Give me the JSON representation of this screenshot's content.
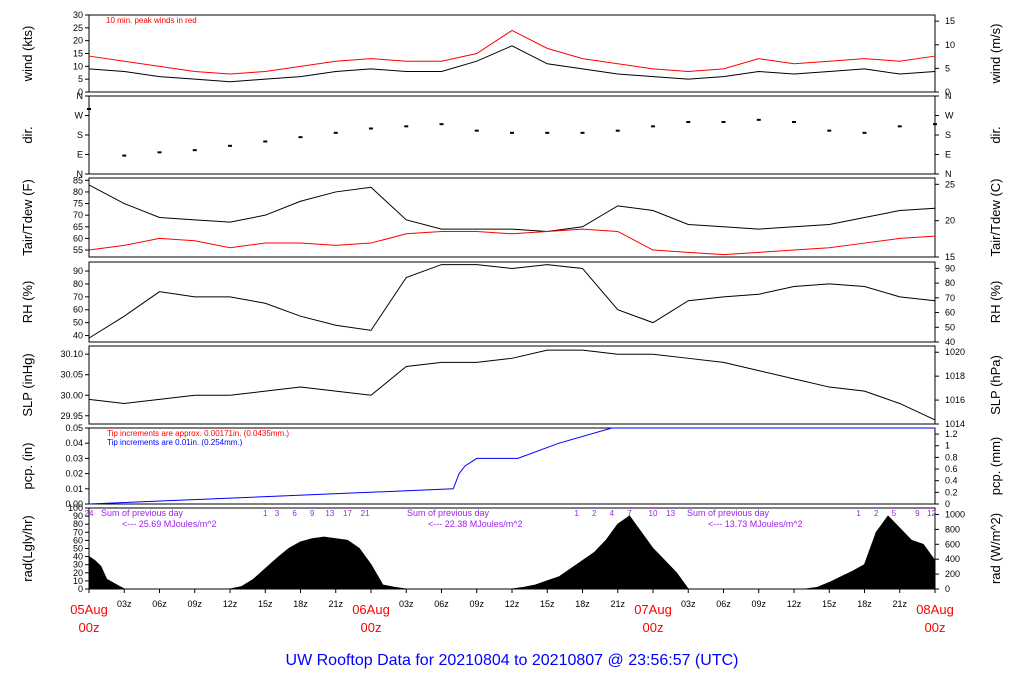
{
  "title": "UW Rooftop Data for 20210804  to  20210807 @ 23:56:57  (UTC)",
  "colors": {
    "text": "#000000",
    "red": "#ff0000",
    "blue": "#0000ff",
    "purple": "#a020f0",
    "title": "#0000ff"
  },
  "time_axis": {
    "hour_labels": [
      "03z",
      "06z",
      "09z",
      "12z",
      "15z",
      "18z",
      "21z"
    ],
    "days": [
      {
        "label": "05Aug",
        "sub": "00z"
      },
      {
        "label": "06Aug",
        "sub": "00z"
      },
      {
        "label": "07Aug",
        "sub": "00z"
      },
      {
        "label": "08Aug",
        "sub": "00z"
      }
    ]
  },
  "chart_data": [
    {
      "type": "line",
      "ylabel_left": "wind (kts)",
      "ylabel_right": "wind (m/s)",
      "annotation": "10 min. peak winds in red",
      "ylim": [
        0,
        30
      ],
      "left_ticks": [
        "0",
        "5",
        "10",
        "15",
        "20",
        "25",
        "30"
      ],
      "right_ticks": [
        "0",
        "5",
        "10",
        "15"
      ],
      "series": [
        {
          "color": "#000000",
          "x": [
            0,
            3,
            6,
            9,
            12,
            15,
            18,
            21,
            24,
            27,
            30,
            33,
            36,
            39,
            42,
            45,
            48,
            51,
            54,
            57,
            60,
            63,
            66,
            69,
            72
          ],
          "values": [
            9,
            8,
            6,
            5,
            4,
            5,
            6,
            8,
            9,
            8,
            8,
            12,
            18,
            11,
            9,
            7,
            6,
            5,
            6,
            8,
            7,
            8,
            9,
            7,
            8
          ]
        },
        {
          "color": "#ff0000",
          "x": [
            0,
            3,
            6,
            9,
            12,
            15,
            18,
            21,
            24,
            27,
            30,
            33,
            36,
            39,
            42,
            45,
            48,
            51,
            54,
            57,
            60,
            63,
            66,
            69,
            72
          ],
          "values": [
            14,
            12,
            10,
            8,
            7,
            8,
            10,
            12,
            13,
            12,
            12,
            15,
            24,
            17,
            13,
            11,
            9,
            8,
            9,
            13,
            11,
            12,
            13,
            12,
            14
          ]
        }
      ]
    },
    {
      "type": "scatter",
      "ylabel_left": "dir.",
      "ylabel_right": "dir.",
      "left_ticks": [
        "N",
        "E",
        "S",
        "W",
        "N"
      ],
      "right_ticks": [
        "N",
        "E",
        "S",
        "W",
        "N"
      ],
      "x": [
        0,
        3,
        6,
        9,
        12,
        15,
        18,
        21,
        24,
        27,
        30,
        33,
        36,
        39,
        42,
        45,
        48,
        51,
        54,
        57,
        60,
        63,
        66,
        69,
        72
      ],
      "values": [
        300,
        85,
        100,
        110,
        130,
        150,
        170,
        190,
        210,
        220,
        230,
        200,
        190,
        190,
        190,
        200,
        220,
        240,
        240,
        250,
        240,
        200,
        190,
        220,
        230
      ]
    },
    {
      "type": "line",
      "ylabel_left": "Tair/Tdew (F)",
      "ylabel_right": "Tair/Tdew (C)",
      "ylim": [
        52,
        86
      ],
      "left_ticks": [
        "55",
        "60",
        "65",
        "70",
        "75",
        "80",
        "85"
      ],
      "right_ticks": [
        "15",
        "20",
        "25"
      ],
      "series": [
        {
          "color": "#000000",
          "x": [
            0,
            3,
            6,
            9,
            12,
            15,
            18,
            21,
            24,
            27,
            30,
            33,
            36,
            39,
            42,
            45,
            48,
            51,
            54,
            57,
            60,
            63,
            66,
            69,
            72
          ],
          "values": [
            83,
            75,
            69,
            68,
            67,
            70,
            76,
            80,
            82,
            68,
            64,
            64,
            64,
            63,
            65,
            74,
            72,
            66,
            65,
            64,
            65,
            66,
            69,
            72,
            73
          ]
        },
        {
          "color": "#ff0000",
          "x": [
            0,
            3,
            6,
            9,
            12,
            15,
            18,
            21,
            24,
            27,
            30,
            33,
            36,
            39,
            42,
            45,
            48,
            51,
            54,
            57,
            60,
            63,
            66,
            69,
            72
          ],
          "values": [
            55,
            57,
            60,
            59,
            56,
            58,
            58,
            57,
            58,
            62,
            63,
            63,
            62,
            63,
            64,
            63,
            55,
            54,
            53,
            54,
            55,
            56,
            58,
            60,
            61
          ]
        }
      ]
    },
    {
      "type": "line",
      "ylabel_left": "RH (%)",
      "ylabel_right": "RH (%)",
      "ylim": [
        35,
        97
      ],
      "left_ticks": [
        "40",
        "50",
        "60",
        "70",
        "80",
        "90"
      ],
      "right_ticks": [
        "40",
        "50",
        "60",
        "70",
        "80",
        "90"
      ],
      "series": [
        {
          "color": "#000000",
          "x": [
            0,
            3,
            6,
            9,
            12,
            15,
            18,
            21,
            24,
            27,
            30,
            33,
            36,
            39,
            42,
            45,
            48,
            51,
            54,
            57,
            60,
            63,
            66,
            69,
            72
          ],
          "values": [
            38,
            55,
            74,
            70,
            70,
            65,
            55,
            48,
            44,
            85,
            95,
            95,
            92,
            95,
            92,
            60,
            50,
            67,
            70,
            72,
            78,
            80,
            78,
            70,
            67
          ]
        }
      ]
    },
    {
      "type": "line",
      "ylabel_left": "SLP (inHg)",
      "ylabel_right": "SLP (hPa)",
      "ylim": [
        29.93,
        30.12
      ],
      "left_ticks": [
        "29.95",
        "30.00",
        "30.05",
        "30.10"
      ],
      "right_ticks": [
        "1014",
        "1016",
        "1018",
        "1020"
      ],
      "series": [
        {
          "color": "#000000",
          "x": [
            0,
            3,
            6,
            9,
            12,
            15,
            18,
            21,
            24,
            27,
            30,
            33,
            36,
            39,
            42,
            45,
            48,
            51,
            54,
            57,
            60,
            63,
            66,
            69,
            72
          ],
          "values": [
            29.99,
            29.98,
            29.99,
            30.0,
            30.0,
            30.01,
            30.02,
            30.01,
            30.0,
            30.07,
            30.08,
            30.08,
            30.09,
            30.11,
            30.11,
            30.1,
            30.1,
            30.09,
            30.08,
            30.06,
            30.04,
            30.02,
            30.01,
            29.98,
            29.94
          ]
        }
      ]
    },
    {
      "type": "line",
      "ylabel_left": "pcp. (in)",
      "ylabel_right": "pcp. (mm)",
      "ylim": [
        0,
        0.05
      ],
      "left_ticks": [
        "0.00",
        "0.01",
        "0.02",
        "0.03",
        "0.04",
        "0.05"
      ],
      "right_ticks": [
        "0",
        "0.2",
        "0.4",
        "0.6",
        "0.8",
        "1",
        "1.2"
      ],
      "annotations": [
        {
          "text": "Tip increments are approx. 0.00171in. (0.0435mm.)",
          "color": "#ff0000"
        },
        {
          "text": "Tip increments are 0.01in. (0.254mm.)",
          "color": "#0000ff"
        }
      ],
      "series": [
        {
          "color": "#0000ff",
          "x": [
            0,
            31,
            31.5,
            32,
            33,
            36.5,
            40,
            44.5,
            72
          ],
          "values": [
            0,
            0.01,
            0.02,
            0.025,
            0.03,
            0.03,
            0.04,
            0.05,
            0.05
          ]
        }
      ]
    },
    {
      "type": "area",
      "ylabel_left": "rad(Lgly/hr)",
      "ylabel_right": "rad (W/m^2)",
      "ylim": [
        0,
        100
      ],
      "left_ticks": [
        "0",
        "10",
        "20",
        "30",
        "40",
        "50",
        "60",
        "70",
        "80",
        "90",
        "100"
      ],
      "right_ticks": [
        "0",
        "200",
        "400",
        "600",
        "800",
        "1000"
      ],
      "day_sums": [
        {
          "text": "Sum of previous day",
          "value_text": "<--- 25.69 MJoules/m^2"
        },
        {
          "text": "Sum of previous day",
          "value_text": "<--- 22.38 MJoules/m^2"
        },
        {
          "text": "Sum of previous day",
          "value_text": "<--- 13.73 MJoules/m^2"
        }
      ],
      "hour_marks": [
        {
          "x": 0,
          "label": "24"
        },
        {
          "x": 15,
          "label": "1"
        },
        {
          "x": 16,
          "label": "3"
        },
        {
          "x": 17.5,
          "label": "6"
        },
        {
          "x": 19,
          "label": "9"
        },
        {
          "x": 20.5,
          "label": "13"
        },
        {
          "x": 22,
          "label": "17"
        },
        {
          "x": 23.5,
          "label": "21"
        },
        {
          "x": 41.5,
          "label": "1"
        },
        {
          "x": 43,
          "label": "2"
        },
        {
          "x": 44.5,
          "label": "4"
        },
        {
          "x": 46,
          "label": "7"
        },
        {
          "x": 48,
          "label": "10"
        },
        {
          "x": 49.5,
          "label": "13"
        },
        {
          "x": 65.5,
          "label": "1"
        },
        {
          "x": 67,
          "label": "2"
        },
        {
          "x": 68.5,
          "label": "5"
        },
        {
          "x": 70.5,
          "label": "9"
        },
        {
          "x": 71.7,
          "label": "12"
        }
      ],
      "x": [
        0,
        0.5,
        1,
        1.5,
        2,
        2.5,
        3,
        12,
        13,
        14,
        15,
        16,
        17,
        18,
        19,
        20,
        21,
        22,
        23,
        24,
        25,
        26,
        27,
        36,
        37,
        38,
        39,
        40,
        41,
        42,
        43,
        44,
        45,
        46,
        47,
        48,
        49,
        50,
        51,
        61,
        62,
        63,
        64,
        65,
        66,
        67,
        68,
        69,
        70,
        71,
        72
      ],
      "values": [
        40,
        35,
        28,
        12,
        8,
        4,
        0,
        0,
        3,
        12,
        25,
        38,
        50,
        58,
        62,
        64,
        62,
        60,
        50,
        30,
        5,
        2,
        0,
        0,
        2,
        5,
        10,
        15,
        25,
        35,
        45,
        60,
        80,
        90,
        70,
        50,
        35,
        20,
        0,
        0,
        2,
        8,
        15,
        22,
        30,
        70,
        90,
        75,
        60,
        55,
        35
      ]
    }
  ]
}
